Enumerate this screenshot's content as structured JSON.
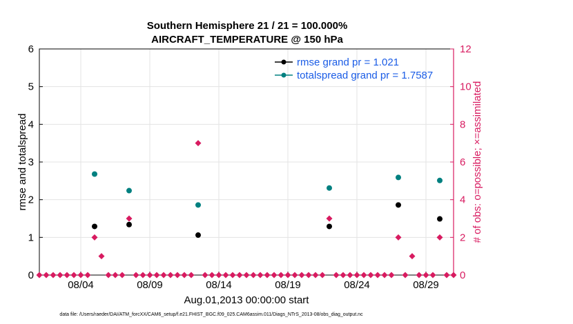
{
  "chart_data": {
    "type": "scatter",
    "title": "Southern Hemisphere 21 / 21 = 100.000%",
    "subtitle": "AIRCRAFT_TEMPERATURE @ 150 hPa",
    "xlabel": "Aug.01,2013 00:00:00 start",
    "ylabel": "rmse and totalspread",
    "y2label": "# of obs: o=possible; ×=assimilated",
    "footnote": "data file: /Users/raeder/DAI/ATM_forcXX/CAM6_setup/f.e21.FHIST_BGC.f09_025.CAM6assim.011/Diags_NTrS_2013-08/obs_diag_output.nc",
    "xlim": [
      1,
      31
    ],
    "ylim": [
      0,
      6
    ],
    "y2lim": [
      0,
      12
    ],
    "x_ticks": [
      4,
      9,
      14,
      19,
      24,
      29
    ],
    "x_tick_labels": [
      "08/04",
      "08/09",
      "08/14",
      "08/19",
      "08/24",
      "08/29"
    ],
    "y_ticks": [
      0,
      1,
      2,
      3,
      4,
      5,
      6
    ],
    "y_tick_labels": [
      "0",
      "1",
      "2",
      "3",
      "4",
      "5",
      "6"
    ],
    "y2_ticks": [
      0,
      2,
      4,
      6,
      8,
      10,
      12
    ],
    "y2_tick_labels": [
      "0",
      "2",
      "4",
      "6",
      "8",
      "10",
      "12"
    ],
    "grid": true,
    "legend_position": "top-right",
    "series": [
      {
        "name": "rmse",
        "legend_label": "rmse grand pr = 1.021",
        "color": "#000000",
        "axis": "left",
        "marker": "circle",
        "x": [
          5,
          7.5,
          12.5,
          22,
          27,
          30
        ],
        "y": [
          1.29,
          1.34,
          1.06,
          1.29,
          1.86,
          1.49
        ]
      },
      {
        "name": "totalspread",
        "legend_label": "totalspread grand pr = 1.7587",
        "color": "#008080",
        "axis": "left",
        "marker": "circle",
        "x": [
          5,
          7.5,
          12.5,
          22,
          27,
          30
        ],
        "y": [
          2.68,
          2.24,
          1.86,
          2.31,
          2.59,
          2.51
        ]
      },
      {
        "name": "# of obs",
        "color": "#D81B60",
        "axis": "right",
        "marker": "diamond",
        "x": [
          1,
          1.5,
          2,
          2.5,
          3,
          3.5,
          4,
          4.5,
          5,
          5.5,
          6,
          6.5,
          7,
          7.5,
          8,
          8.5,
          9,
          9.5,
          10,
          10.5,
          11,
          11.5,
          12,
          12.5,
          13,
          13.5,
          14,
          14.5,
          15,
          15.5,
          16,
          16.5,
          17,
          17.5,
          18,
          18.5,
          19,
          19.5,
          20,
          20.5,
          21,
          21.5,
          22,
          22.5,
          23,
          23.5,
          24,
          24.5,
          25,
          25.5,
          26,
          26.5,
          27,
          27.5,
          28,
          28.5,
          29,
          29.5,
          30,
          30.5,
          31
        ],
        "y": [
          0,
          0,
          0,
          0,
          0,
          0,
          0,
          0,
          2,
          1,
          0,
          0,
          0,
          3,
          0,
          0,
          0,
          0,
          0,
          0,
          0,
          0,
          0,
          7,
          0,
          0,
          0,
          0,
          0,
          0,
          0,
          0,
          0,
          0,
          0,
          0,
          0,
          0,
          0,
          0,
          0,
          0,
          3,
          0,
          0,
          0,
          0,
          0,
          0,
          0,
          0,
          0,
          2,
          0,
          1,
          0,
          0,
          0,
          2,
          0,
          0
        ]
      }
    ]
  }
}
